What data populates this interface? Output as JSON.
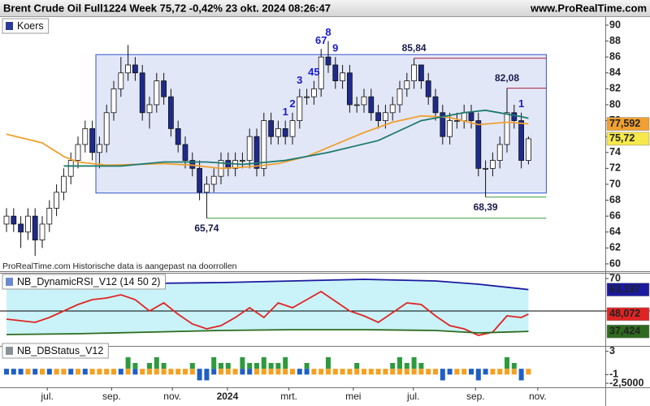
{
  "chart_data": [
    {
      "type": "candlestick",
      "title": "Brent Crude Oil Full1224 Week 75,72 -0,42% 23 okt. 2024 08:26:47",
      "source": "www.ProRealTime.com",
      "note": "ProRealTime.com Historische data is aangepast na doorrollen",
      "legend": "Koers",
      "legend_color": "#2a3a9a",
      "up_color": "#ffffff",
      "down_color": "#1e2a8c",
      "open": [
        65,
        66,
        65,
        64,
        66,
        63,
        65,
        67,
        69,
        71,
        73,
        75,
        77,
        74,
        75,
        79,
        82,
        84,
        85,
        84,
        79,
        80,
        83,
        81,
        77,
        75,
        73,
        72,
        69,
        70,
        71,
        73,
        72,
        73,
        73,
        76,
        72,
        78,
        76,
        77,
        76,
        78,
        81,
        81,
        82,
        86,
        85,
        83,
        84,
        80,
        80,
        81,
        79,
        78,
        79,
        80,
        82,
        83,
        85,
        83,
        81,
        79,
        76,
        78,
        78,
        79,
        78,
        72,
        72,
        73,
        75,
        79,
        78,
        73
      ],
      "high": [
        67,
        67,
        66,
        67,
        67,
        66,
        68,
        70,
        72,
        74,
        76,
        78,
        78,
        76,
        80,
        83,
        86,
        87.5,
        86,
        85,
        81,
        84,
        84,
        82,
        78,
        76,
        74,
        73,
        71,
        72,
        74,
        74,
        74,
        74,
        77,
        77,
        79,
        79,
        78,
        78,
        79,
        82,
        82,
        83,
        87,
        88,
        86,
        85,
        85,
        81,
        82,
        82,
        80,
        80,
        81,
        83,
        84,
        85.84,
        85,
        84,
        82,
        80,
        79,
        79,
        80,
        80,
        79,
        73,
        74,
        76,
        82.08,
        80,
        79,
        76
      ],
      "low": [
        64,
        64,
        62,
        63,
        61,
        62,
        64,
        66,
        68,
        70,
        72,
        74,
        73,
        72,
        74,
        78,
        81,
        83,
        83,
        78,
        77,
        79,
        80,
        76,
        74,
        72,
        71,
        68,
        65.74,
        69,
        70,
        71,
        71,
        72,
        72,
        71,
        71,
        75,
        75,
        75,
        75,
        77,
        80,
        80,
        81,
        84,
        82,
        82,
        79,
        79,
        79,
        78,
        77,
        77,
        78,
        79,
        81,
        82,
        82,
        80,
        78,
        75,
        75,
        77,
        77,
        77,
        71,
        68.39,
        71,
        72,
        74,
        77,
        72,
        72.5
      ],
      "close": [
        66,
        65,
        64,
        66,
        63,
        65,
        67,
        69,
        71,
        73,
        75,
        77,
        74,
        75,
        79,
        82,
        84,
        85,
        84,
        79,
        80,
        83,
        81,
        77,
        75,
        73,
        72,
        69,
        70,
        71,
        73,
        72,
        73,
        73,
        76,
        72,
        78,
        76,
        77,
        76,
        78,
        81,
        81,
        82,
        86,
        85,
        83,
        84,
        80,
        80,
        81,
        79,
        78,
        79,
        80,
        82,
        83,
        85,
        83,
        81,
        79,
        76,
        78,
        78,
        79,
        78,
        72,
        72,
        73,
        75,
        79,
        78,
        73,
        75.72
      ],
      "last_price": {
        "value": 75.72,
        "label": "75,72"
      },
      "last_price_color": "#f6e84a",
      "series": [
        {
          "color": "#f0a030",
          "x": [
            0,
            5,
            8,
            10,
            14,
            18,
            22,
            26,
            30,
            34,
            38,
            42,
            46,
            50,
            54,
            58,
            62,
            66,
            70,
            73
          ],
          "values": [
            76.3,
            75.2,
            73.5,
            72.8,
            72.4,
            72.5,
            72.6,
            72.4,
            72.0,
            72.2,
            72.6,
            73.5,
            75.0,
            76.5,
            77.8,
            78.6,
            78.4,
            77.5,
            77.8,
            77.592
          ],
          "last_label": {
            "value": 77.592,
            "label": "77,592"
          }
        },
        {
          "color": "#1e7a6e",
          "x": [
            8,
            16,
            22,
            28,
            33,
            39,
            45,
            52,
            58,
            64,
            67,
            72,
            73
          ],
          "values": [
            72.3,
            72.3,
            72.8,
            72.8,
            72.5,
            73.0,
            74.0,
            75.5,
            78.0,
            79.0,
            79.3,
            78.5,
            78.3
          ]
        }
      ],
      "zone": {
        "from": 13,
        "ylim": [
          68.9,
          86.3
        ],
        "color": "#3355cc"
      },
      "levels": [
        {
          "value": 85.84,
          "label": "85,84",
          "from": 57,
          "color": "#b02040"
        },
        {
          "value": 82.08,
          "label": "82,08",
          "from": 70,
          "color": "#b02040"
        },
        {
          "value": 68.39,
          "label": "68,39",
          "from": 67,
          "color": "#3a9a3a"
        },
        {
          "value": 65.74,
          "label": "65,74",
          "from": 28,
          "color": "#3a9a3a"
        }
      ],
      "annotations": [
        {
          "label": "1",
          "candle": 39
        },
        {
          "label": "2",
          "candle": 40
        },
        {
          "label": "3",
          "candle": 41
        },
        {
          "label": "45",
          "candle": 43
        },
        {
          "label": "67",
          "candle": 44
        },
        {
          "label": "8",
          "candle": 45
        },
        {
          "label": "9",
          "candle": 46
        },
        {
          "label": "1",
          "candle": 72
        }
      ],
      "annotation_color": "#1a1acc",
      "xlim": [
        -0.91,
        83.75
      ],
      "xticks": [
        {
          "value": 5.7,
          "label": "jul."
        },
        {
          "value": 14.7,
          "label": "sep."
        },
        {
          "value": 23.2,
          "label": "nov."
        },
        {
          "value": 30.9,
          "label": "2024"
        },
        {
          "value": 39.5,
          "label": "mrt."
        },
        {
          "value": 48.5,
          "label": "mei"
        },
        {
          "value": 56.9,
          "label": "jul."
        },
        {
          "value": 65.6,
          "label": "sep."
        },
        {
          "value": 74.3,
          "label": "nov."
        }
      ],
      "ylim": [
        59.18,
        91.12
      ],
      "yticks": [
        60,
        62,
        64,
        66,
        68,
        70,
        72,
        74,
        76,
        78,
        80,
        82,
        84,
        86,
        88,
        90
      ]
    },
    {
      "type": "line",
      "legend": "NB_DynamicRSI_V12 (14 50 2)",
      "legend_color": "#6a8ad0",
      "ylim": [
        29,
        73
      ],
      "yticks": [
        70
      ],
      "reference_line": 50,
      "band": [
        1,
        2
      ],
      "band_color": "#c9f3f8",
      "series": [
        {
          "color": "#e02424",
          "x": [
            0,
            2,
            4,
            6,
            8,
            10,
            12,
            14,
            16,
            18,
            20,
            22,
            24,
            26,
            28,
            30,
            32,
            34,
            36,
            38,
            40,
            42,
            44,
            46,
            48,
            50,
            52,
            54,
            56,
            58,
            60,
            62,
            64,
            66,
            68,
            70,
            72,
            73
          ],
          "values": [
            45,
            44,
            43,
            46,
            50,
            54,
            57,
            58,
            60,
            57,
            50,
            55,
            48,
            42,
            39,
            41,
            46,
            52,
            46,
            55,
            52,
            57,
            62,
            56,
            50,
            47,
            43,
            49,
            55,
            54,
            47,
            41,
            39,
            35,
            37,
            47,
            46,
            48.072
          ],
          "last_label": {
            "value": 48.072,
            "label": "48,072"
          }
        },
        {
          "color": "#1a1aa0",
          "x": [
            0,
            10,
            20,
            30,
            40,
            50,
            60,
            66,
            73
          ],
          "values": [
            65.5,
            67.5,
            67,
            67.5,
            68.5,
            69.5,
            68.5,
            66.5,
            63.197
          ],
          "last_label": {
            "value": 63.197,
            "label": "63,197"
          }
        },
        {
          "color": "#2e6b1e",
          "x": [
            0,
            10,
            20,
            30,
            40,
            50,
            60,
            66,
            73
          ],
          "values": [
            35.5,
            36,
            37,
            38,
            38.5,
            38.5,
            38,
            36.5,
            37.424
          ],
          "last_label": {
            "value": 37.424,
            "label": "37,424"
          }
        }
      ]
    },
    {
      "type": "bar",
      "legend": "NB_DBStatus_V12",
      "legend_color": "#8a9298",
      "ylim": [
        -3.2,
        3.8
      ],
      "yticks": [
        3,
        -1,
        {
          "value": -2.5,
          "label": "-2,5000"
        }
      ],
      "series": [
        {
          "color": "#2e9a3e",
          "values": [
            null,
            null,
            null,
            null,
            null,
            null,
            null,
            null,
            null,
            null,
            null,
            null,
            null,
            null,
            null,
            null,
            null,
            2,
            1,
            null,
            1,
            2,
            1,
            null,
            null,
            null,
            1,
            null,
            null,
            2,
            1,
            1,
            null,
            2,
            1,
            1,
            2,
            1,
            1,
            2,
            null,
            null,
            1,
            null,
            null,
            2,
            null,
            null,
            null,
            1,
            null,
            null,
            null,
            null,
            1,
            2,
            1,
            2,
            1,
            null,
            null,
            null,
            null,
            null,
            null,
            null,
            null,
            null,
            null,
            null,
            2,
            1,
            null,
            null
          ]
        },
        {
          "color": "#1f5fc4",
          "values": [
            -1,
            -1,
            -1,
            null,
            -1,
            null,
            -1,
            null,
            null,
            -1,
            null,
            -1,
            null,
            null,
            null,
            null,
            -1,
            null,
            -1,
            null,
            null,
            null,
            null,
            null,
            null,
            null,
            null,
            -2,
            -2,
            -1,
            null,
            null,
            null,
            -1,
            -1,
            null,
            null,
            null,
            null,
            null,
            null,
            -1,
            -1,
            null,
            null,
            null,
            null,
            null,
            null,
            null,
            null,
            null,
            null,
            null,
            null,
            null,
            null,
            null,
            null,
            null,
            null,
            -2,
            -1,
            null,
            null,
            -1,
            -2,
            -1,
            null,
            null,
            null,
            null,
            -2,
            null
          ]
        },
        {
          "color": "#f5a020",
          "values": [
            null,
            null,
            null,
            -1,
            null,
            -1,
            null,
            -1,
            -1,
            null,
            -1,
            null,
            -1,
            -1,
            -1,
            -1,
            null,
            -1,
            null,
            -1,
            -1,
            -1,
            -1,
            -1,
            -1,
            -1,
            -1,
            null,
            null,
            null,
            -1,
            -1,
            -1,
            null,
            null,
            -1,
            -1,
            -1,
            -1,
            -1,
            -1,
            null,
            null,
            -1,
            -1,
            -1,
            -1,
            -1,
            -1,
            -1,
            -1,
            -1,
            -1,
            -1,
            -1,
            -1,
            -1,
            -1,
            -1,
            -1,
            -1,
            null,
            null,
            -1,
            -1,
            null,
            null,
            null,
            -1,
            -1,
            -1,
            -1,
            null,
            -1
          ]
        }
      ]
    }
  ]
}
